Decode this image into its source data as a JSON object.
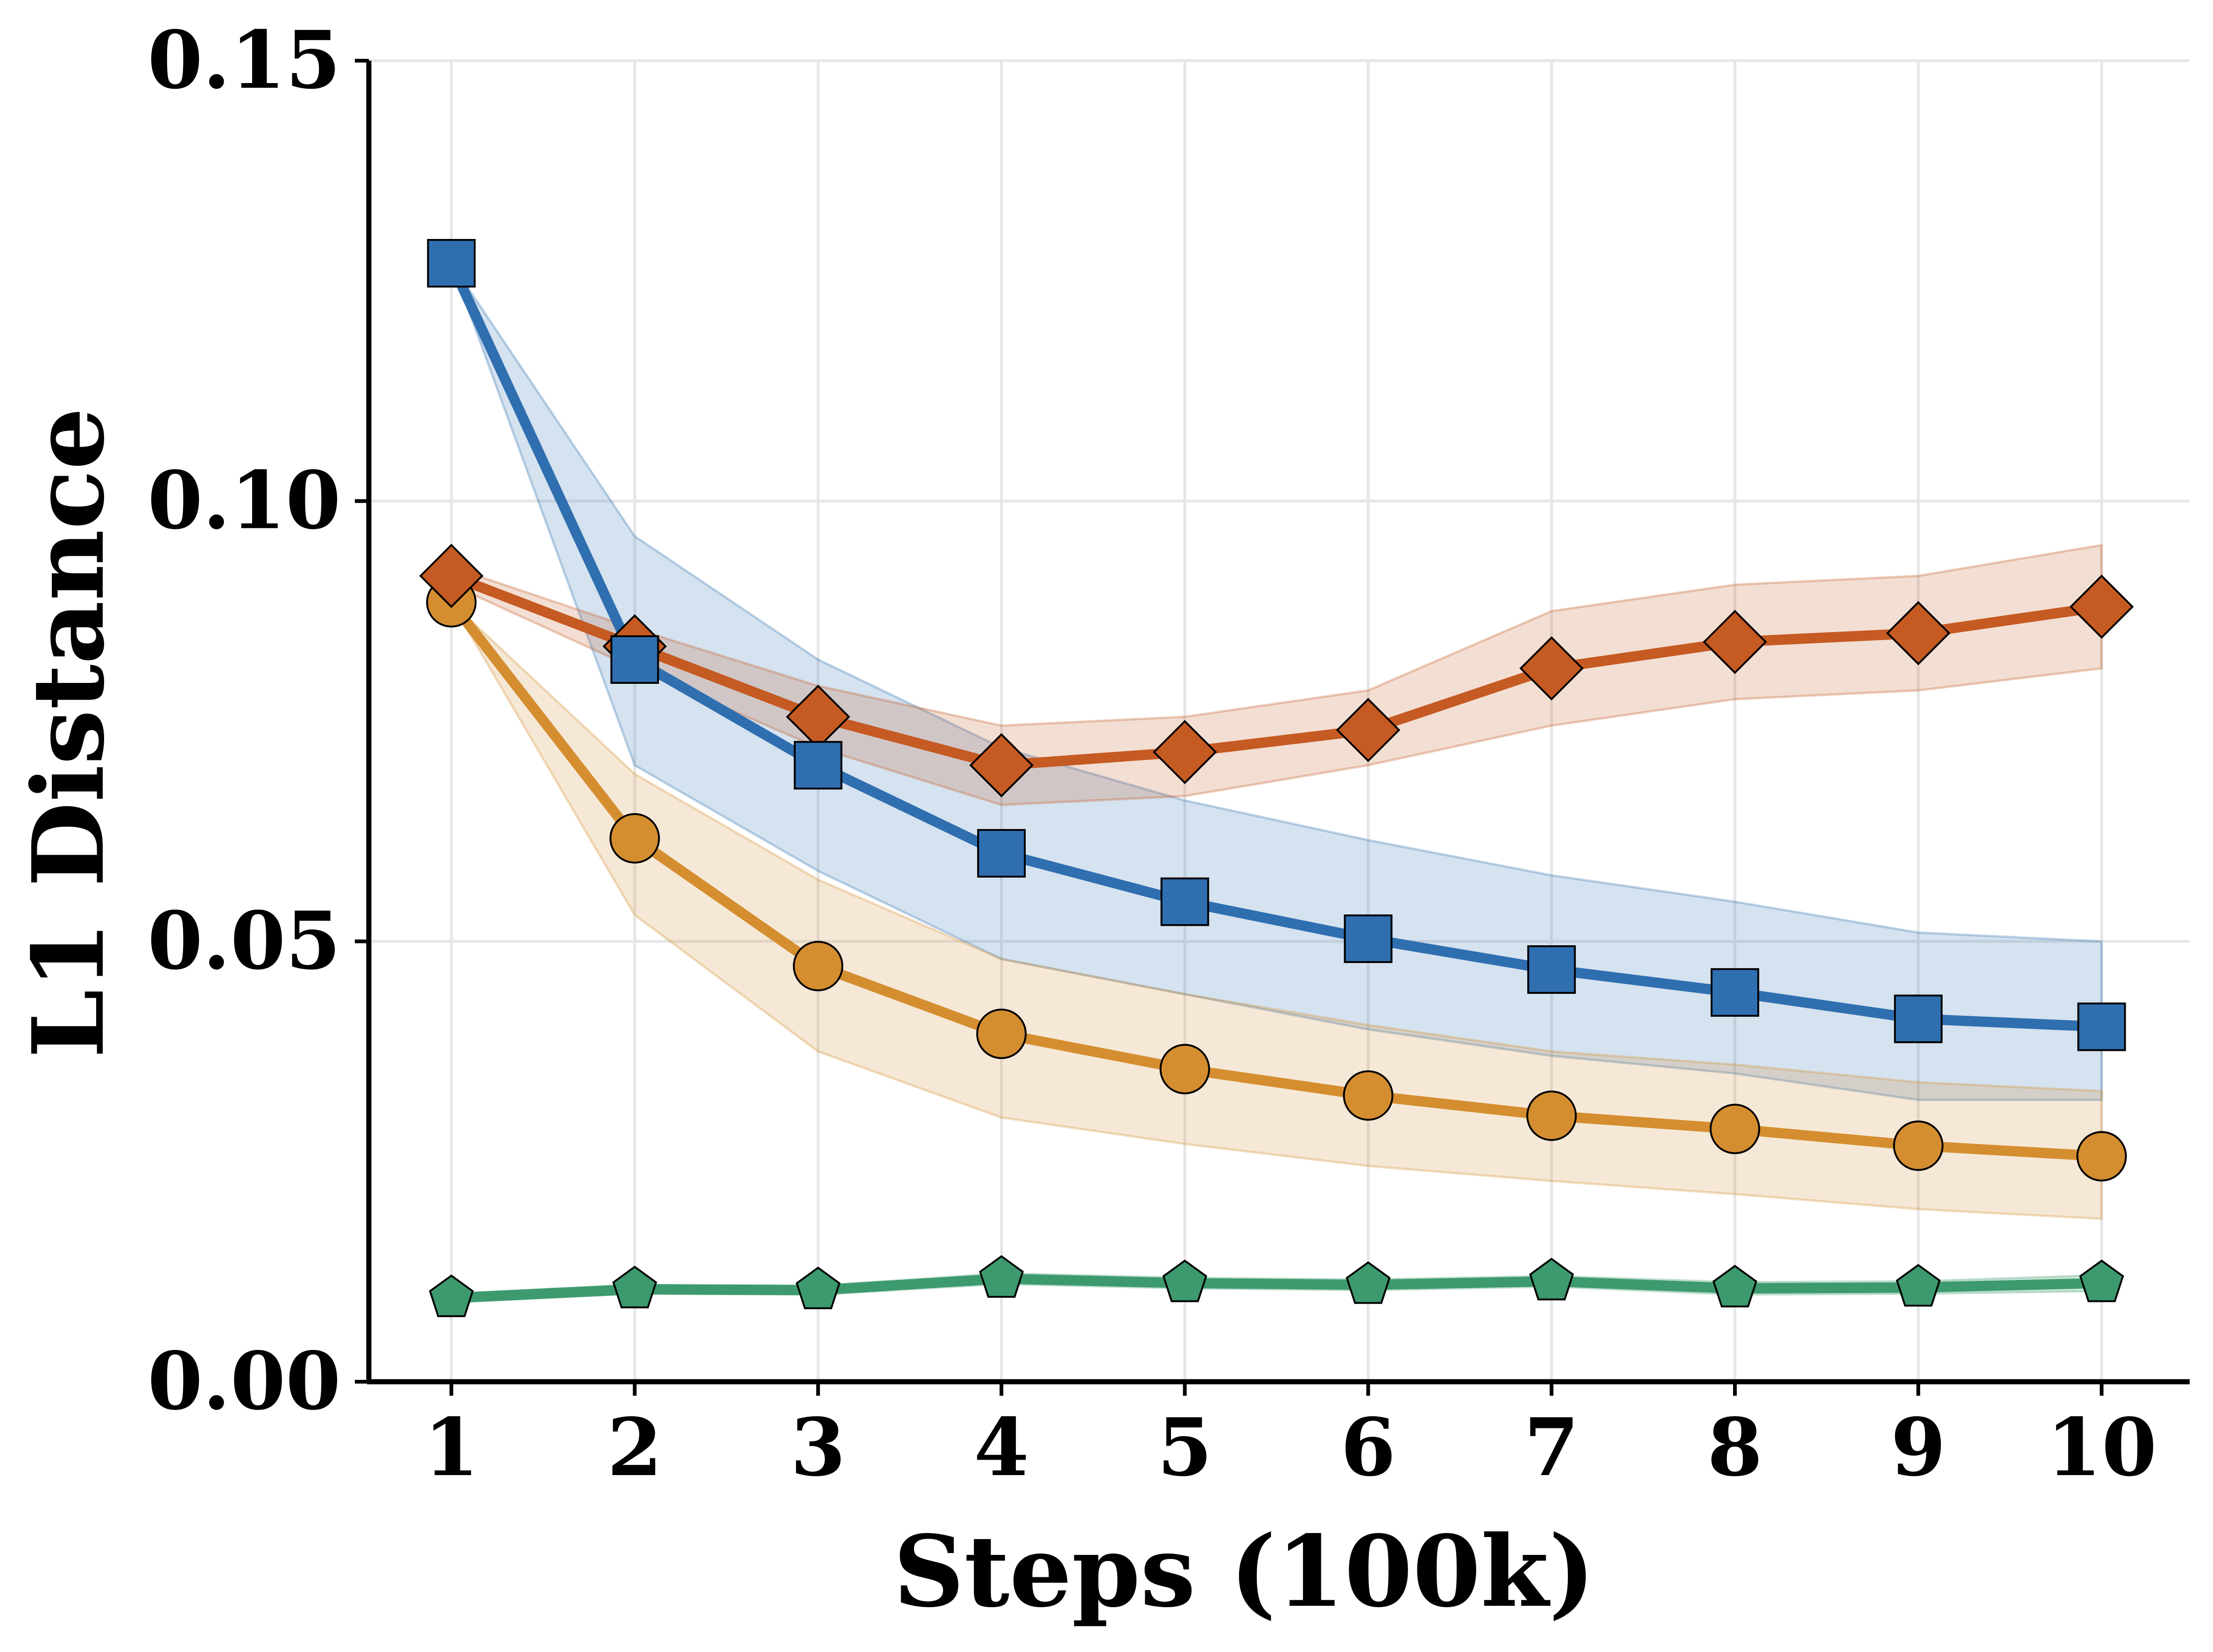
{
  "chart_data": {
    "type": "line",
    "title": "",
    "xlabel": "Steps (100k)",
    "ylabel": "L1 Distance",
    "x": [
      1,
      2,
      3,
      4,
      5,
      6,
      7,
      8,
      9,
      10
    ],
    "x_tick_labels": [
      "1",
      "2",
      "3",
      "4",
      "5",
      "6",
      "7",
      "8",
      "9",
      "10"
    ],
    "y_tick_values": [
      0.0,
      0.05,
      0.1,
      0.15
    ],
    "y_tick_labels": [
      "0.00",
      "0.05",
      "0.10",
      "0.15"
    ],
    "xlim": [
      0.55,
      10.48
    ],
    "ylim": [
      0,
      0.15
    ],
    "grid": true,
    "legend": "none",
    "series": [
      {
        "name": "blue-square",
        "color": "#2f6fb0",
        "marker": "square",
        "values": [
          0.127,
          0.082,
          0.07,
          0.06,
          0.0545,
          0.0503,
          0.0468,
          0.0442,
          0.0412,
          0.0403
        ],
        "lower": [
          0.127,
          0.07,
          0.058,
          0.048,
          0.044,
          0.04,
          0.037,
          0.035,
          0.032,
          0.032
        ],
        "upper": [
          0.127,
          0.096,
          0.082,
          0.072,
          0.066,
          0.0615,
          0.0575,
          0.0545,
          0.051,
          0.05
        ]
      },
      {
        "name": "orange-diamond",
        "color": "#c55a22",
        "marker": "diamond",
        "values": [
          0.0915,
          0.0835,
          0.0755,
          0.07,
          0.0715,
          0.074,
          0.081,
          0.084,
          0.085,
          0.088
        ],
        "lower": [
          0.0905,
          0.081,
          0.072,
          0.0655,
          0.0665,
          0.07,
          0.0745,
          0.0775,
          0.0785,
          0.081
        ],
        "upper": [
          0.0925,
          0.0855,
          0.079,
          0.0745,
          0.0755,
          0.0785,
          0.0875,
          0.0905,
          0.0915,
          0.095
        ]
      },
      {
        "name": "gold-circle",
        "color": "#d48e30",
        "marker": "circle",
        "values": [
          0.0885,
          0.0617,
          0.0472,
          0.0395,
          0.0355,
          0.0325,
          0.0302,
          0.0287,
          0.0268,
          0.0256
        ],
        "lower": [
          0.0885,
          0.053,
          0.0375,
          0.03,
          0.027,
          0.0245,
          0.0228,
          0.0213,
          0.0196,
          0.0185
        ],
        "upper": [
          0.0885,
          0.069,
          0.057,
          0.048,
          0.044,
          0.0405,
          0.0375,
          0.036,
          0.034,
          0.033
        ]
      },
      {
        "name": "green-pentagon",
        "color": "#3d9a6e",
        "marker": "pentagon",
        "values": [
          0.0095,
          0.0105,
          0.0104,
          0.0117,
          0.0112,
          0.011,
          0.0114,
          0.0106,
          0.0107,
          0.0112
        ],
        "lower": [
          0.009,
          0.01,
          0.0099,
          0.0111,
          0.0106,
          0.0104,
          0.0108,
          0.0099,
          0.01,
          0.0103
        ],
        "upper": [
          0.01,
          0.011,
          0.0109,
          0.0123,
          0.0118,
          0.0116,
          0.012,
          0.0113,
          0.0114,
          0.0121
        ]
      }
    ]
  }
}
